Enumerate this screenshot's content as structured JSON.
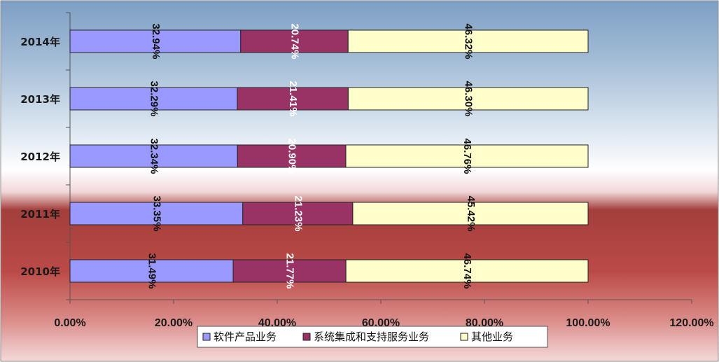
{
  "chart_data": {
    "type": "bar",
    "orientation": "horizontal",
    "stacked": true,
    "categories": [
      "2014年",
      "2013年",
      "2012年",
      "2011年",
      "2010年"
    ],
    "series": [
      {
        "name": "软件产品业务",
        "color": "#9999ff",
        "label_color": "#111111",
        "values": [
          32.94,
          32.29,
          32.34,
          33.35,
          31.49
        ]
      },
      {
        "name": "系统集成和支持服务业务",
        "color": "#993366",
        "label_color": "#ffffff",
        "values": [
          20.74,
          21.41,
          20.9,
          21.23,
          21.77
        ]
      },
      {
        "name": "其他业务",
        "color": "#ffffcc",
        "label_color": "#111111",
        "values": [
          46.32,
          46.3,
          46.76,
          45.42,
          46.74
        ]
      }
    ],
    "data_labels": [
      [
        "32.94%",
        "20.74%",
        "46.32%"
      ],
      [
        "32.29%",
        "21.41%",
        "46.30%"
      ],
      [
        "32.34%",
        "20.90%",
        "46.76%"
      ],
      [
        "33.35%",
        "21.23%",
        "45.42%"
      ],
      [
        "31.49%",
        "21.77%",
        "46.74%"
      ]
    ],
    "x_ticks": [
      "0.00%",
      "20.00%",
      "40.00%",
      "60.00%",
      "80.00%",
      "100.00%",
      "120.00%"
    ],
    "xlim": [
      0,
      120
    ],
    "grid": false,
    "legend_position": "bottom"
  }
}
